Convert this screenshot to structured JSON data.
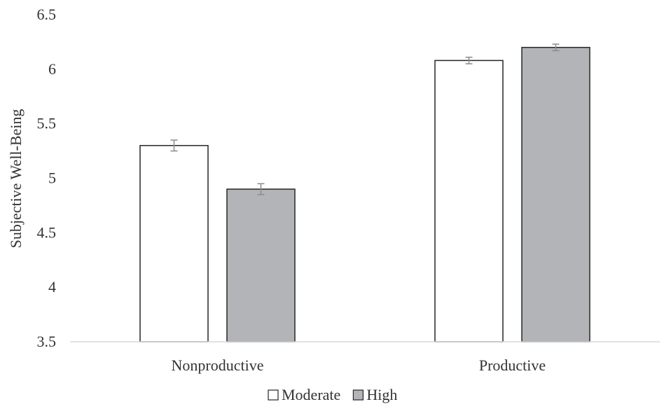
{
  "chart_data": {
    "type": "bar",
    "title": "",
    "xlabel": "",
    "ylabel": "Subjective Well-Being",
    "ylim": [
      3.5,
      6.5
    ],
    "yticks": [
      "3.5",
      "4",
      "4.5",
      "5",
      "5.5",
      "6",
      "6.5"
    ],
    "categories": [
      "Nonproductive",
      "Productive"
    ],
    "series": [
      {
        "name": "Moderate",
        "values": [
          5.3,
          6.08
        ],
        "errors": [
          0.05,
          0.03
        ],
        "color": "#ffffff"
      },
      {
        "name": "High",
        "values": [
          4.9,
          6.2
        ],
        "errors": [
          0.05,
          0.03
        ],
        "color": "#b3b4b7"
      }
    ],
    "grid": false,
    "legend_position": "bottom-center"
  }
}
